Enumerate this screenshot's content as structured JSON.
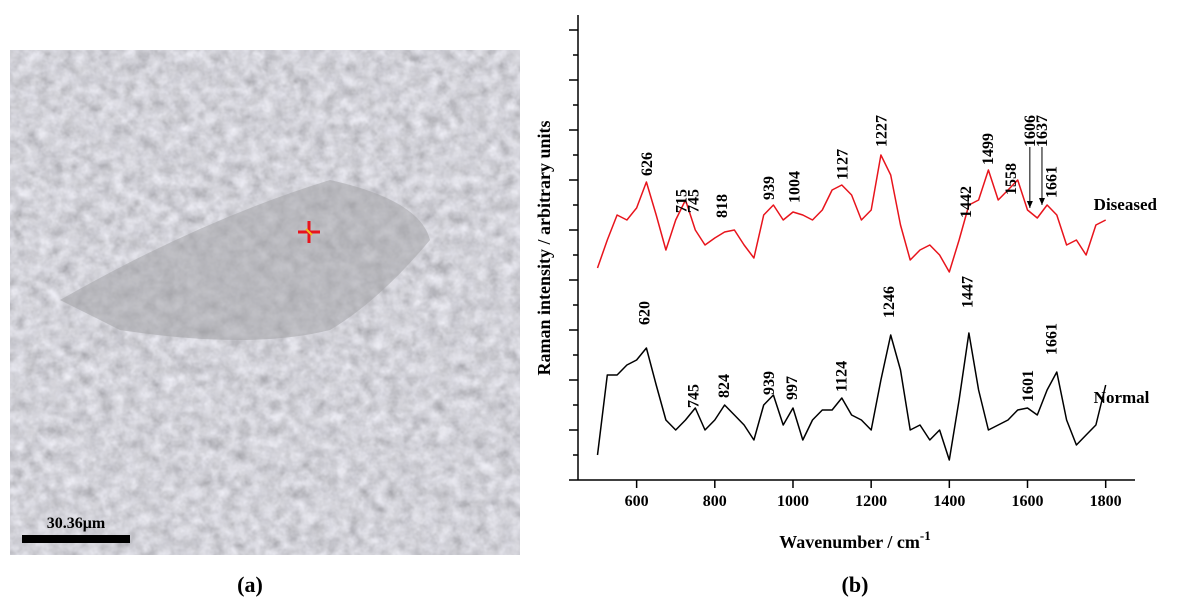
{
  "chart_data": {
    "type": "line",
    "panel_labels": [
      "(a)",
      "(b)"
    ],
    "image_scale_bar": "30.36μm",
    "xlabel": "Wavenumber / cm",
    "xlabel_superscript": "-1",
    "ylabel": "Raman intensity / arbitrary units",
    "x": [
      500,
      525,
      550,
      575,
      600,
      625,
      650,
      675,
      700,
      725,
      750,
      775,
      800,
      825,
      850,
      875,
      900,
      925,
      950,
      975,
      1000,
      1025,
      1050,
      1075,
      1100,
      1125,
      1150,
      1175,
      1200,
      1225,
      1250,
      1275,
      1300,
      1325,
      1350,
      1375,
      1400,
      1425,
      1450,
      1475,
      1500,
      1525,
      1550,
      1575,
      1600,
      1625,
      1650,
      1675,
      1700,
      1725,
      1750,
      1775,
      1800
    ],
    "series": [
      {
        "name": "Diseased",
        "color": "#e8141c",
        "values": [
          212,
          240,
          265,
          260,
          272,
          298,
          265,
          230,
          260,
          280,
          250,
          235,
          242,
          248,
          250,
          235,
          222,
          265,
          275,
          260,
          268,
          265,
          260,
          270,
          290,
          295,
          285,
          260,
          270,
          325,
          305,
          255,
          220,
          230,
          235,
          225,
          208,
          240,
          275,
          280,
          310,
          280,
          290,
          300,
          270,
          262,
          275,
          265,
          235,
          240,
          225,
          255,
          260
        ],
        "annotations": [
          {
            "text": "626",
            "x": 626,
            "y": 304
          },
          {
            "text": "715",
            "x": 715,
            "y": 267
          },
          {
            "text": "745",
            "x": 745,
            "y": 267
          },
          {
            "text": "818",
            "x": 818,
            "y": 262
          },
          {
            "text": "939",
            "x": 939,
            "y": 280
          },
          {
            "text": "1004",
            "x": 1004,
            "y": 277
          },
          {
            "text": "1127",
            "x": 1127,
            "y": 300
          },
          {
            "text": "1227",
            "x": 1227,
            "y": 333
          },
          {
            "text": "1442",
            "x": 1442,
            "y": 262
          },
          {
            "text": "1499",
            "x": 1499,
            "y": 315
          },
          {
            "text": "1558",
            "x": 1558,
            "y": 285
          },
          {
            "text": "1606",
            "x": 1606,
            "y": 333,
            "arrow_to": 272
          },
          {
            "text": "1637",
            "x": 1637,
            "y": 333,
            "arrow_to": 275
          },
          {
            "text": "1661",
            "x": 1661,
            "y": 282
          }
        ]
      },
      {
        "name": "Normal",
        "color": "#000000",
        "values": [
          25,
          105,
          105,
          115,
          120,
          132,
          95,
          60,
          50,
          60,
          72,
          50,
          60,
          75,
          65,
          55,
          40,
          75,
          85,
          55,
          72,
          40,
          60,
          70,
          70,
          82,
          65,
          60,
          50,
          100,
          145,
          110,
          50,
          55,
          40,
          50,
          20,
          80,
          147,
          90,
          50,
          55,
          60,
          70,
          72,
          65,
          90,
          108,
          60,
          35,
          45,
          55,
          95
        ],
        "annotations": [
          {
            "text": "620",
            "x": 620,
            "y": 155
          },
          {
            "text": "745",
            "x": 745,
            "y": 72
          },
          {
            "text": "824",
            "x": 824,
            "y": 82
          },
          {
            "text": "939",
            "x": 939,
            "y": 85
          },
          {
            "text": "997",
            "x": 997,
            "y": 80
          },
          {
            "text": "1124",
            "x": 1124,
            "y": 88
          },
          {
            "text": "1246",
            "x": 1246,
            "y": 162
          },
          {
            "text": "1447",
            "x": 1447,
            "y": 172
          },
          {
            "text": "1601",
            "x": 1601,
            "y": 78
          },
          {
            "text": "1661",
            "x": 1661,
            "y": 125
          }
        ]
      }
    ],
    "xlim": [
      450,
      1875
    ],
    "xticks": [
      600,
      800,
      1000,
      1200,
      1400,
      1600,
      1800
    ],
    "ylim": [
      0,
      465
    ],
    "yticks": [
      0,
      25,
      50,
      75,
      100,
      125,
      150,
      175,
      200,
      225,
      250,
      275,
      300,
      325,
      350,
      375,
      400,
      425,
      450
    ]
  }
}
